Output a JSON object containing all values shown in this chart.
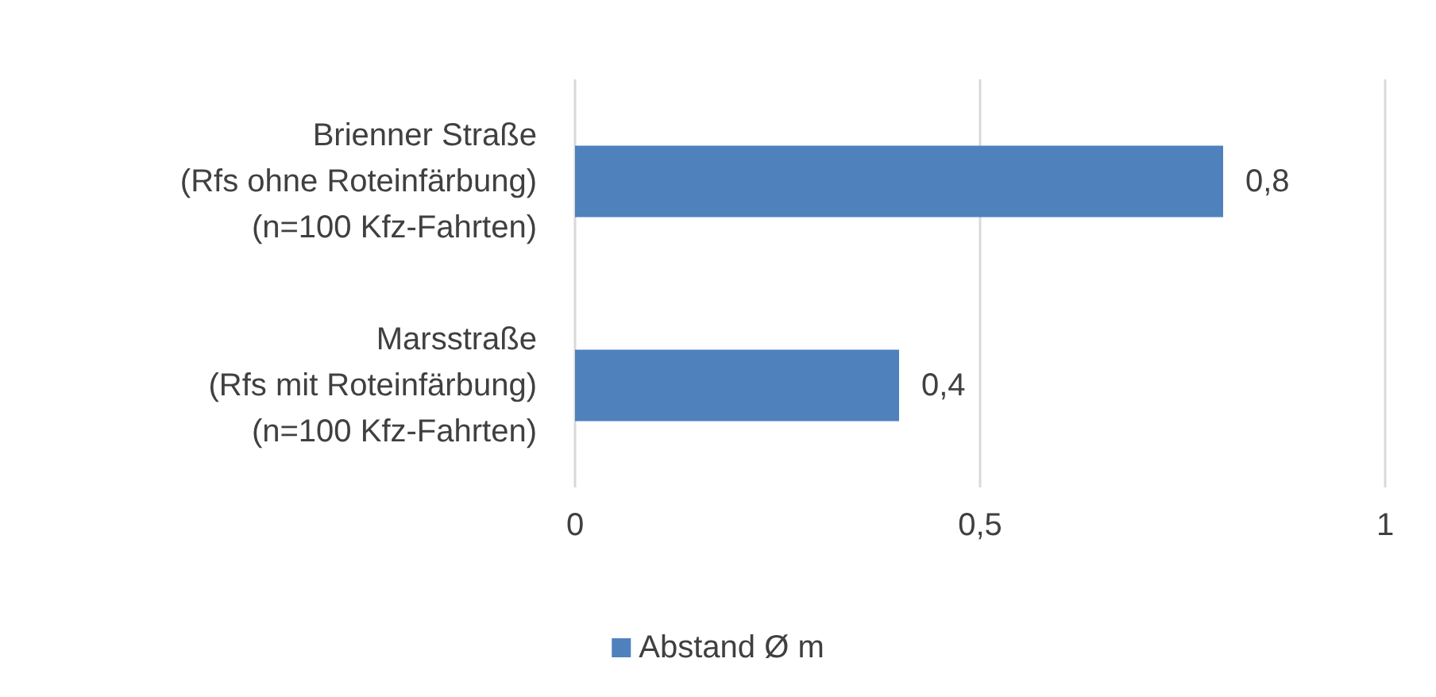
{
  "chart_data": {
    "type": "bar",
    "orientation": "horizontal",
    "categories": [
      "Brienner Straße\n(Rfs ohne Roteinfärbung)\n(n=100 Kfz-Fahrten)",
      "Marsstraße\n(Rfs mit Roteinfärbung)\n(n=100 Kfz-Fahrten)"
    ],
    "series": [
      {
        "name": "Abstand Ø m",
        "color": "#4f81bd",
        "values": [
          0.8,
          0.4
        ],
        "value_labels": [
          "0,8",
          "0,4"
        ]
      }
    ],
    "xlim": [
      0,
      1
    ],
    "xticks": [
      0,
      {
        "value": 0.5,
        "label": "0,5"
      },
      1
    ],
    "grid": "x",
    "legend": "bottom"
  }
}
